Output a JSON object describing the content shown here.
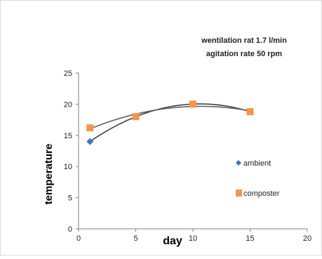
{
  "chart_data": {
    "type": "scatter",
    "title": "",
    "annotation_lines": [
      "wentilation rat 1.7 l/min",
      "agitation rate 50 rpm"
    ],
    "xlabel": "day",
    "ylabel": "temperature",
    "xlim": [
      0,
      20
    ],
    "ylim": [
      0,
      25
    ],
    "x_ticks": [
      0,
      5,
      10,
      15,
      20
    ],
    "y_ticks": [
      0,
      5,
      10,
      15,
      20,
      25
    ],
    "grid": false,
    "legend_position": "right",
    "series": [
      {
        "name": "ambient",
        "marker": "diamond",
        "color": "#4472c4",
        "x": [
          1
        ],
        "y": [
          14
        ]
      },
      {
        "name": "composter",
        "marker": "square",
        "color": "#f79646",
        "x": [
          1,
          5,
          10,
          15
        ],
        "y": [
          16.2,
          18,
          20,
          18.8
        ]
      }
    ],
    "trendlines": [
      {
        "kind": "polynomial-2",
        "color": "#404040",
        "points": [
          [
            1,
            14
          ],
          [
            5,
            18
          ],
          [
            10,
            20
          ],
          [
            15,
            18.8
          ]
        ]
      },
      {
        "kind": "polynomial-2",
        "color": "#606060",
        "points": [
          [
            1,
            16.2
          ],
          [
            5,
            18
          ],
          [
            10,
            20
          ],
          [
            15,
            18.8
          ]
        ]
      }
    ]
  }
}
